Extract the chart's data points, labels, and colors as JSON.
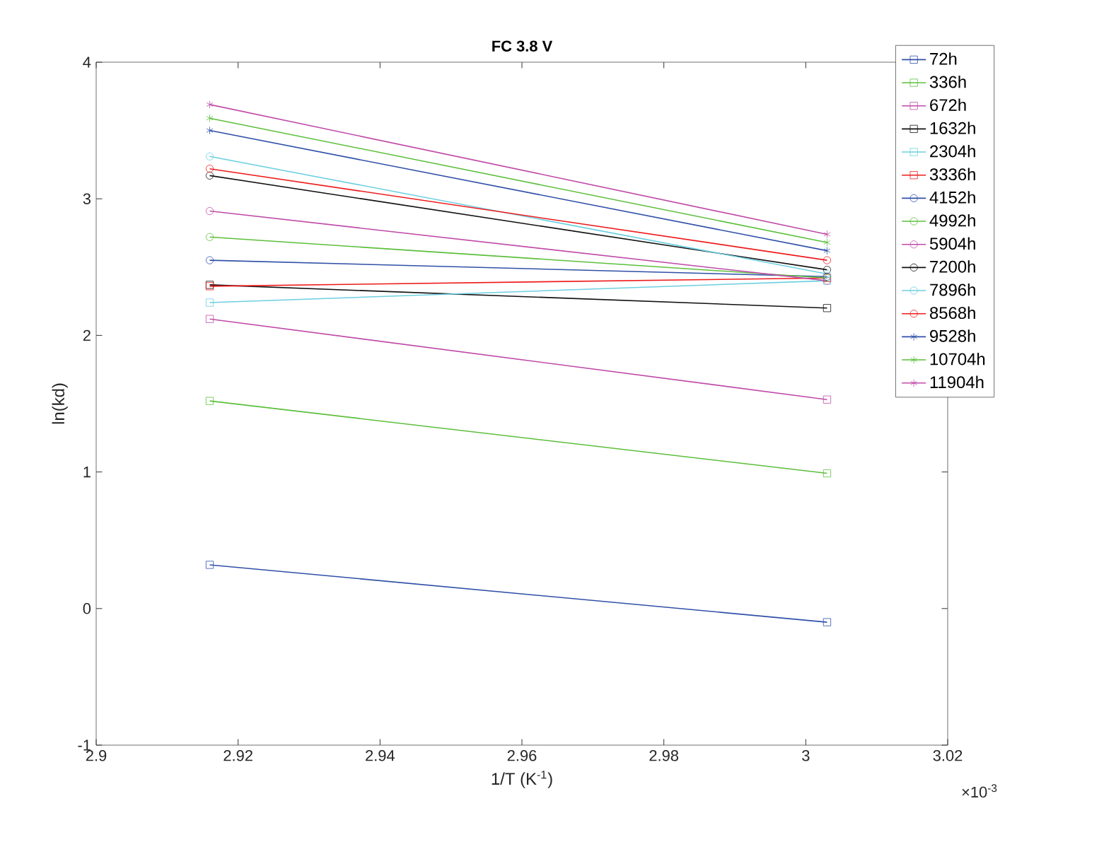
{
  "chart_data": {
    "type": "line",
    "title": "FC 3.8 V",
    "xlabel": "1/T (K$^{-1}$)",
    "ylabel": "ln(kd)",
    "annotations": [
      "×10$^{-3}$"
    ],
    "xlim": [
      2.9,
      3.02
    ],
    "xticks": [
      2.9,
      2.92,
      2.94,
      2.96,
      2.98,
      3,
      3.02
    ],
    "ylim": [
      -1,
      4
    ],
    "yticks": [
      -1,
      0,
      1,
      2,
      3,
      4
    ],
    "x": [
      2.916,
      3.003
    ],
    "grid": false,
    "legend": "right",
    "line_style": "solid",
    "series": [
      {
        "name": "72h",
        "color": "#3050a8",
        "marker": "square",
        "values": [
          0.32,
          -0.1
        ]
      },
      {
        "name": "336h",
        "color": "#5cbf3c",
        "marker": "square",
        "values": [
          1.52,
          0.99
        ]
      },
      {
        "name": "672h",
        "color": "#c04ca8",
        "marker": "square",
        "values": [
          2.12,
          1.53
        ]
      },
      {
        "name": "1632h",
        "color": "#111111",
        "marker": "square",
        "values": [
          2.37,
          2.2
        ]
      },
      {
        "name": "2304h",
        "color": "#6ccfe0",
        "marker": "square",
        "values": [
          2.24,
          2.4
        ]
      },
      {
        "name": "3336h",
        "color": "#ee1c1c",
        "marker": "square",
        "values": [
          2.36,
          2.42
        ]
      },
      {
        "name": "4152h",
        "color": "#3050a8",
        "marker": "circle",
        "values": [
          2.55,
          2.43
        ]
      },
      {
        "name": "4992h",
        "color": "#5cbf3c",
        "marker": "circle",
        "values": [
          2.72,
          2.42
        ]
      },
      {
        "name": "5904h",
        "color": "#c04ca8",
        "marker": "circle",
        "values": [
          2.91,
          2.4
        ]
      },
      {
        "name": "7200h",
        "color": "#111111",
        "marker": "circle",
        "values": [
          3.17,
          2.48
        ]
      },
      {
        "name": "7896h",
        "color": "#6ccfe0",
        "marker": "circle",
        "values": [
          3.31,
          2.45
        ]
      },
      {
        "name": "8568h",
        "color": "#ee1c1c",
        "marker": "circle",
        "values": [
          3.22,
          2.55
        ]
      },
      {
        "name": "9528h",
        "color": "#3050a8",
        "marker": "cross",
        "values": [
          3.5,
          2.62
        ]
      },
      {
        "name": "10704h",
        "color": "#5cbf3c",
        "marker": "cross",
        "values": [
          3.59,
          2.68
        ]
      },
      {
        "name": "11904h",
        "color": "#c04ca8",
        "marker": "cross",
        "values": [
          3.69,
          2.74
        ]
      }
    ]
  }
}
